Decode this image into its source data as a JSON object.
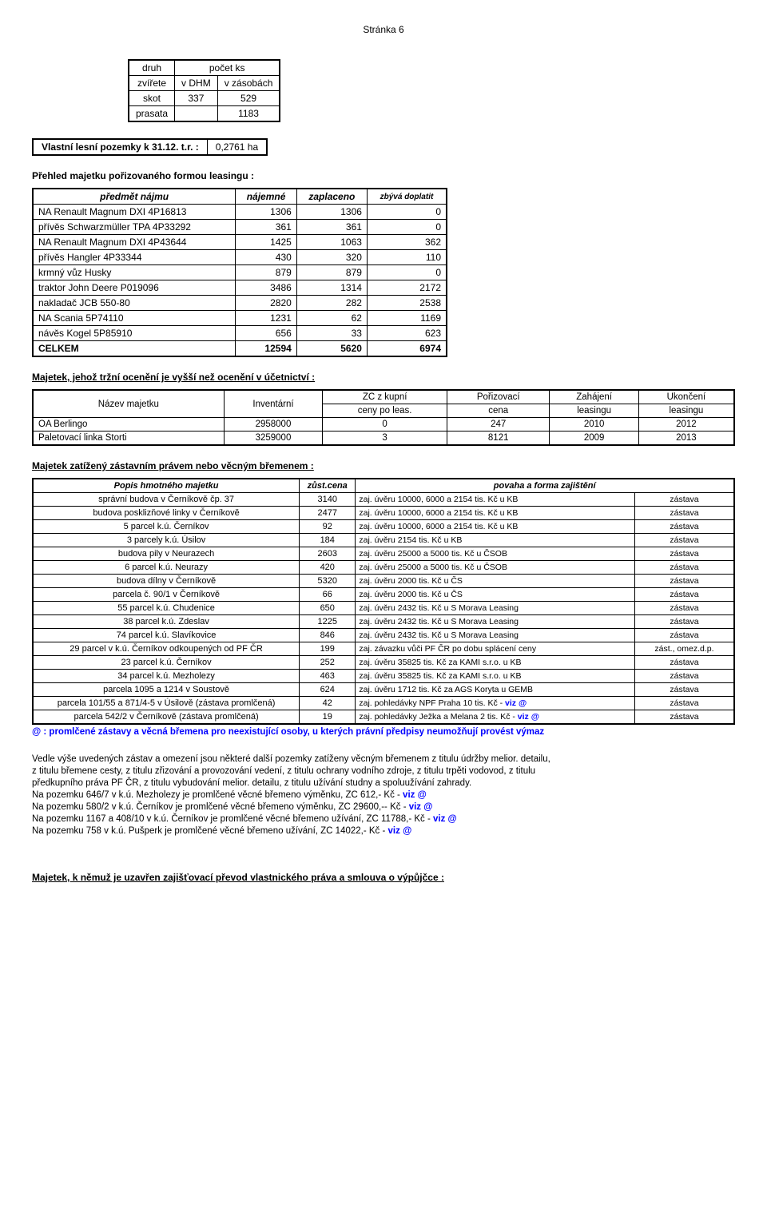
{
  "page_label": "Stránka 6",
  "animals": {
    "h1": "druh",
    "h2": "počet ks",
    "h3": "zvířete",
    "h4": "v DHM",
    "h5": "v zásobách",
    "rows": [
      {
        "a": "skot",
        "b": "337",
        "c": "529"
      },
      {
        "a": "prasata",
        "b": "",
        "c": "1183"
      }
    ]
  },
  "forest": {
    "label": "Vlastní lesní pozemky k 31.12. t.r. :",
    "val": "0,2761 ha"
  },
  "leasing_title": "Přehled majetku pořizovaného formou leasingu :",
  "leasing": {
    "h1": "předmět nájmu",
    "h2": "nájemné",
    "h3": "zaplaceno",
    "h4": "zbývá doplatit",
    "rows": [
      {
        "a": "NA Renault Magnum DXI 4P16813",
        "b": "1306",
        "c": "1306",
        "d": "0"
      },
      {
        "a": "přívěs Schwarzmüller TPA 4P33292",
        "b": "361",
        "c": "361",
        "d": "0"
      },
      {
        "a": "NA Renault Magnum DXI 4P43644",
        "b": "1425",
        "c": "1063",
        "d": "362"
      },
      {
        "a": "přívěs Hangler 4P33344",
        "b": "430",
        "c": "320",
        "d": "110"
      },
      {
        "a": "krmný vůz Husky",
        "b": "879",
        "c": "879",
        "d": "0"
      },
      {
        "a": "traktor John Deere P019096",
        "b": "3486",
        "c": "1314",
        "d": "2172"
      },
      {
        "a": "nakladač JCB 550-80",
        "b": "2820",
        "c": "282",
        "d": "2538"
      },
      {
        "a": "NA Scania 5P74110",
        "b": "1231",
        "c": "62",
        "d": "1169"
      },
      {
        "a": "návěs Kogel 5P85910",
        "b": "656",
        "c": "33",
        "d": "623"
      }
    ],
    "total": {
      "a": "CELKEM",
      "b": "12594",
      "c": "5620",
      "d": "6974"
    }
  },
  "market_title": "Majetek, jehož tržní ocenění je vyšší než ocenění v účetnictví :",
  "market": {
    "h1": "Název majetku",
    "h2a": "Inventární",
    "h3a": "ZC z kupní",
    "h4a": "Pořizovací",
    "h5a": "Zahájení",
    "h6a": "Ukončení",
    "h3b": "ceny po leas.",
    "h4b": "cena",
    "h5b": "leasingu",
    "h6b": "leasingu",
    "rows": [
      {
        "a": "OA Berlingo",
        "b": "2958000",
        "c": "0",
        "d": "247",
        "e": "2010",
        "f": "2012"
      },
      {
        "a": "Paletovací linka Storti",
        "b": "3259000",
        "c": "3",
        "d": "8121",
        "e": "2009",
        "f": "2013"
      }
    ]
  },
  "pledge_title": "Majetek zatížený zástavním právem nebo věcným břemenem :",
  "pledge": {
    "h1": "Popis hmotného majetku",
    "h2": "zůst.cena",
    "h3": "povaha a forma zajištění",
    "rows": [
      {
        "a": "správní budova v Černíkově čp. 37",
        "b": "3140",
        "c": "zaj. úvěru 10000, 6000 a 2154 tis. Kč u KB",
        "d": "zástava"
      },
      {
        "a": "budova posklizňové linky v Černíkově",
        "b": "2477",
        "c": "zaj. úvěru 10000, 6000 a 2154 tis. Kč u KB",
        "d": "zástava"
      },
      {
        "a": "5 parcel k.ú. Černíkov",
        "b": "92",
        "c": "zaj. úvěru 10000, 6000 a 2154  tis. Kč u KB",
        "d": "zástava"
      },
      {
        "a": "3 parcely k.ú. Úsilov",
        "b": "184",
        "c": "zaj. úvěru 2154  tis. Kč u KB",
        "d": "zástava"
      },
      {
        "a": "budova pily v Neurazech",
        "b": "2603",
        "c": "zaj. úvěru 25000 a 5000 tis. Kč u ČSOB",
        "d": "zástava"
      },
      {
        "a": "6 parcel k.ú. Neurazy",
        "b": "420",
        "c": "zaj. úvěru 25000 a 5000 tis. Kč u ČSOB",
        "d": "zástava"
      },
      {
        "a": "budova dílny v Černíkově",
        "b": "5320",
        "c": "zaj. úvěru 2000 tis. Kč u ČS",
        "d": "zástava"
      },
      {
        "a": "parcela č. 90/1 v Černíkově",
        "b": "66",
        "c": "zaj. úvěru 2000 tis. Kč u ČS",
        "d": "zástava"
      },
      {
        "a": "55 parcel k.ú. Chudenice",
        "b": "650",
        "c": "zaj. úvěru 2432 tis. Kč u S Morava Leasing",
        "d": "zástava"
      },
      {
        "a": "38 parcel k.ú. Zdeslav",
        "b": "1225",
        "c": "zaj. úvěru 2432 tis. Kč u S Morava Leasing",
        "d": "zástava"
      },
      {
        "a": "74 parcel k.ú. Slavíkovice",
        "b": "846",
        "c": "zaj. úvěru 2432 tis. Kč u S Morava Leasing",
        "d": "zástava"
      },
      {
        "a": "29 parcel v k.ú. Černíkov odkoupených od PF ČR",
        "b": "199",
        "c": "zaj. závazku vůči PF ČR po dobu splácení ceny",
        "d": "zást., omez.d.p."
      },
      {
        "a": "23 parcel k.ú. Černíkov",
        "b": "252",
        "c": "zaj. úvěru 35825 tis. Kč za KAMI s.r.o. u KB",
        "d": "zástava"
      },
      {
        "a": "34 parcel k.ú. Mezholezy",
        "b": "463",
        "c": "zaj. úvěru 35825 tis. Kč za KAMI s.r.o. u KB",
        "d": "zástava"
      },
      {
        "a": "parcela 1095 a 1214 v Soustově",
        "b": "624",
        "c": "zaj. úvěru 1712 tis. Kč za AGS Koryta u GEMB",
        "d": "zástava"
      },
      {
        "a": "parcela 101/55 a 871/4-5 v Úsilově (zástava promlčená)",
        "b": "42",
        "c_pre": "zaj. pohledávky NPF Praha 10 tis. Kč - ",
        "c_link": "viz @",
        "d": "zástava"
      },
      {
        "a": "parcela 542/2 v Černíkově (zástava promlčená)",
        "b": "19",
        "c_pre": "zaj. pohledávky Ježka a Melana 2 tis. Kč - ",
        "c_link": "viz @",
        "d": "zástava"
      }
    ]
  },
  "pledge_note_pre": "@ : promlčené zástavy a věcná břemena pro neexistující osoby, u kterých právní předpisy neumožňují provést výmaz",
  "para1": "Vedle výše uvedených zástav a omezení jsou některé další pozemky zatíženy věcným břemenem z titulu údržby melior. detailu,",
  "para2": "z titulu břemene cesty, z titulu zřizování a provozování vedení, z titulu ochrany vodního zdroje, z titulu trpěti vodovod, z titulu",
  "para3": "předkupního práva PF ČR, z titulu vybudování melior. detailu, z titulu užívání studny a spoluužívání zahrady.",
  "viz": "viz @",
  "np1": "Na pozemku 646/7 v k.ú. Mezholezy je promlčené věcné břemeno výměnku, ZC 612,- Kč - ",
  "np2": "Na pozemku 580/2 v k.ú. Černíkov je promlčené věcné břemeno výměnku, ZC 29600,-- Kč - ",
  "np3": "Na pozemku 1167 a 408/10 v k.ú. Černíkov je promlčené věcné břemeno užívání, ZC 11788,- Kč - ",
  "np4": "Na pozemku 758 v k.ú. Pušperk je promlčené věcné břemeno užívání, ZC 14022,- Kč - ",
  "final_title": "Majetek, k němuž je uzavřen zajišťovací převod vlastnického práva a smlouva o výpůjčce :"
}
